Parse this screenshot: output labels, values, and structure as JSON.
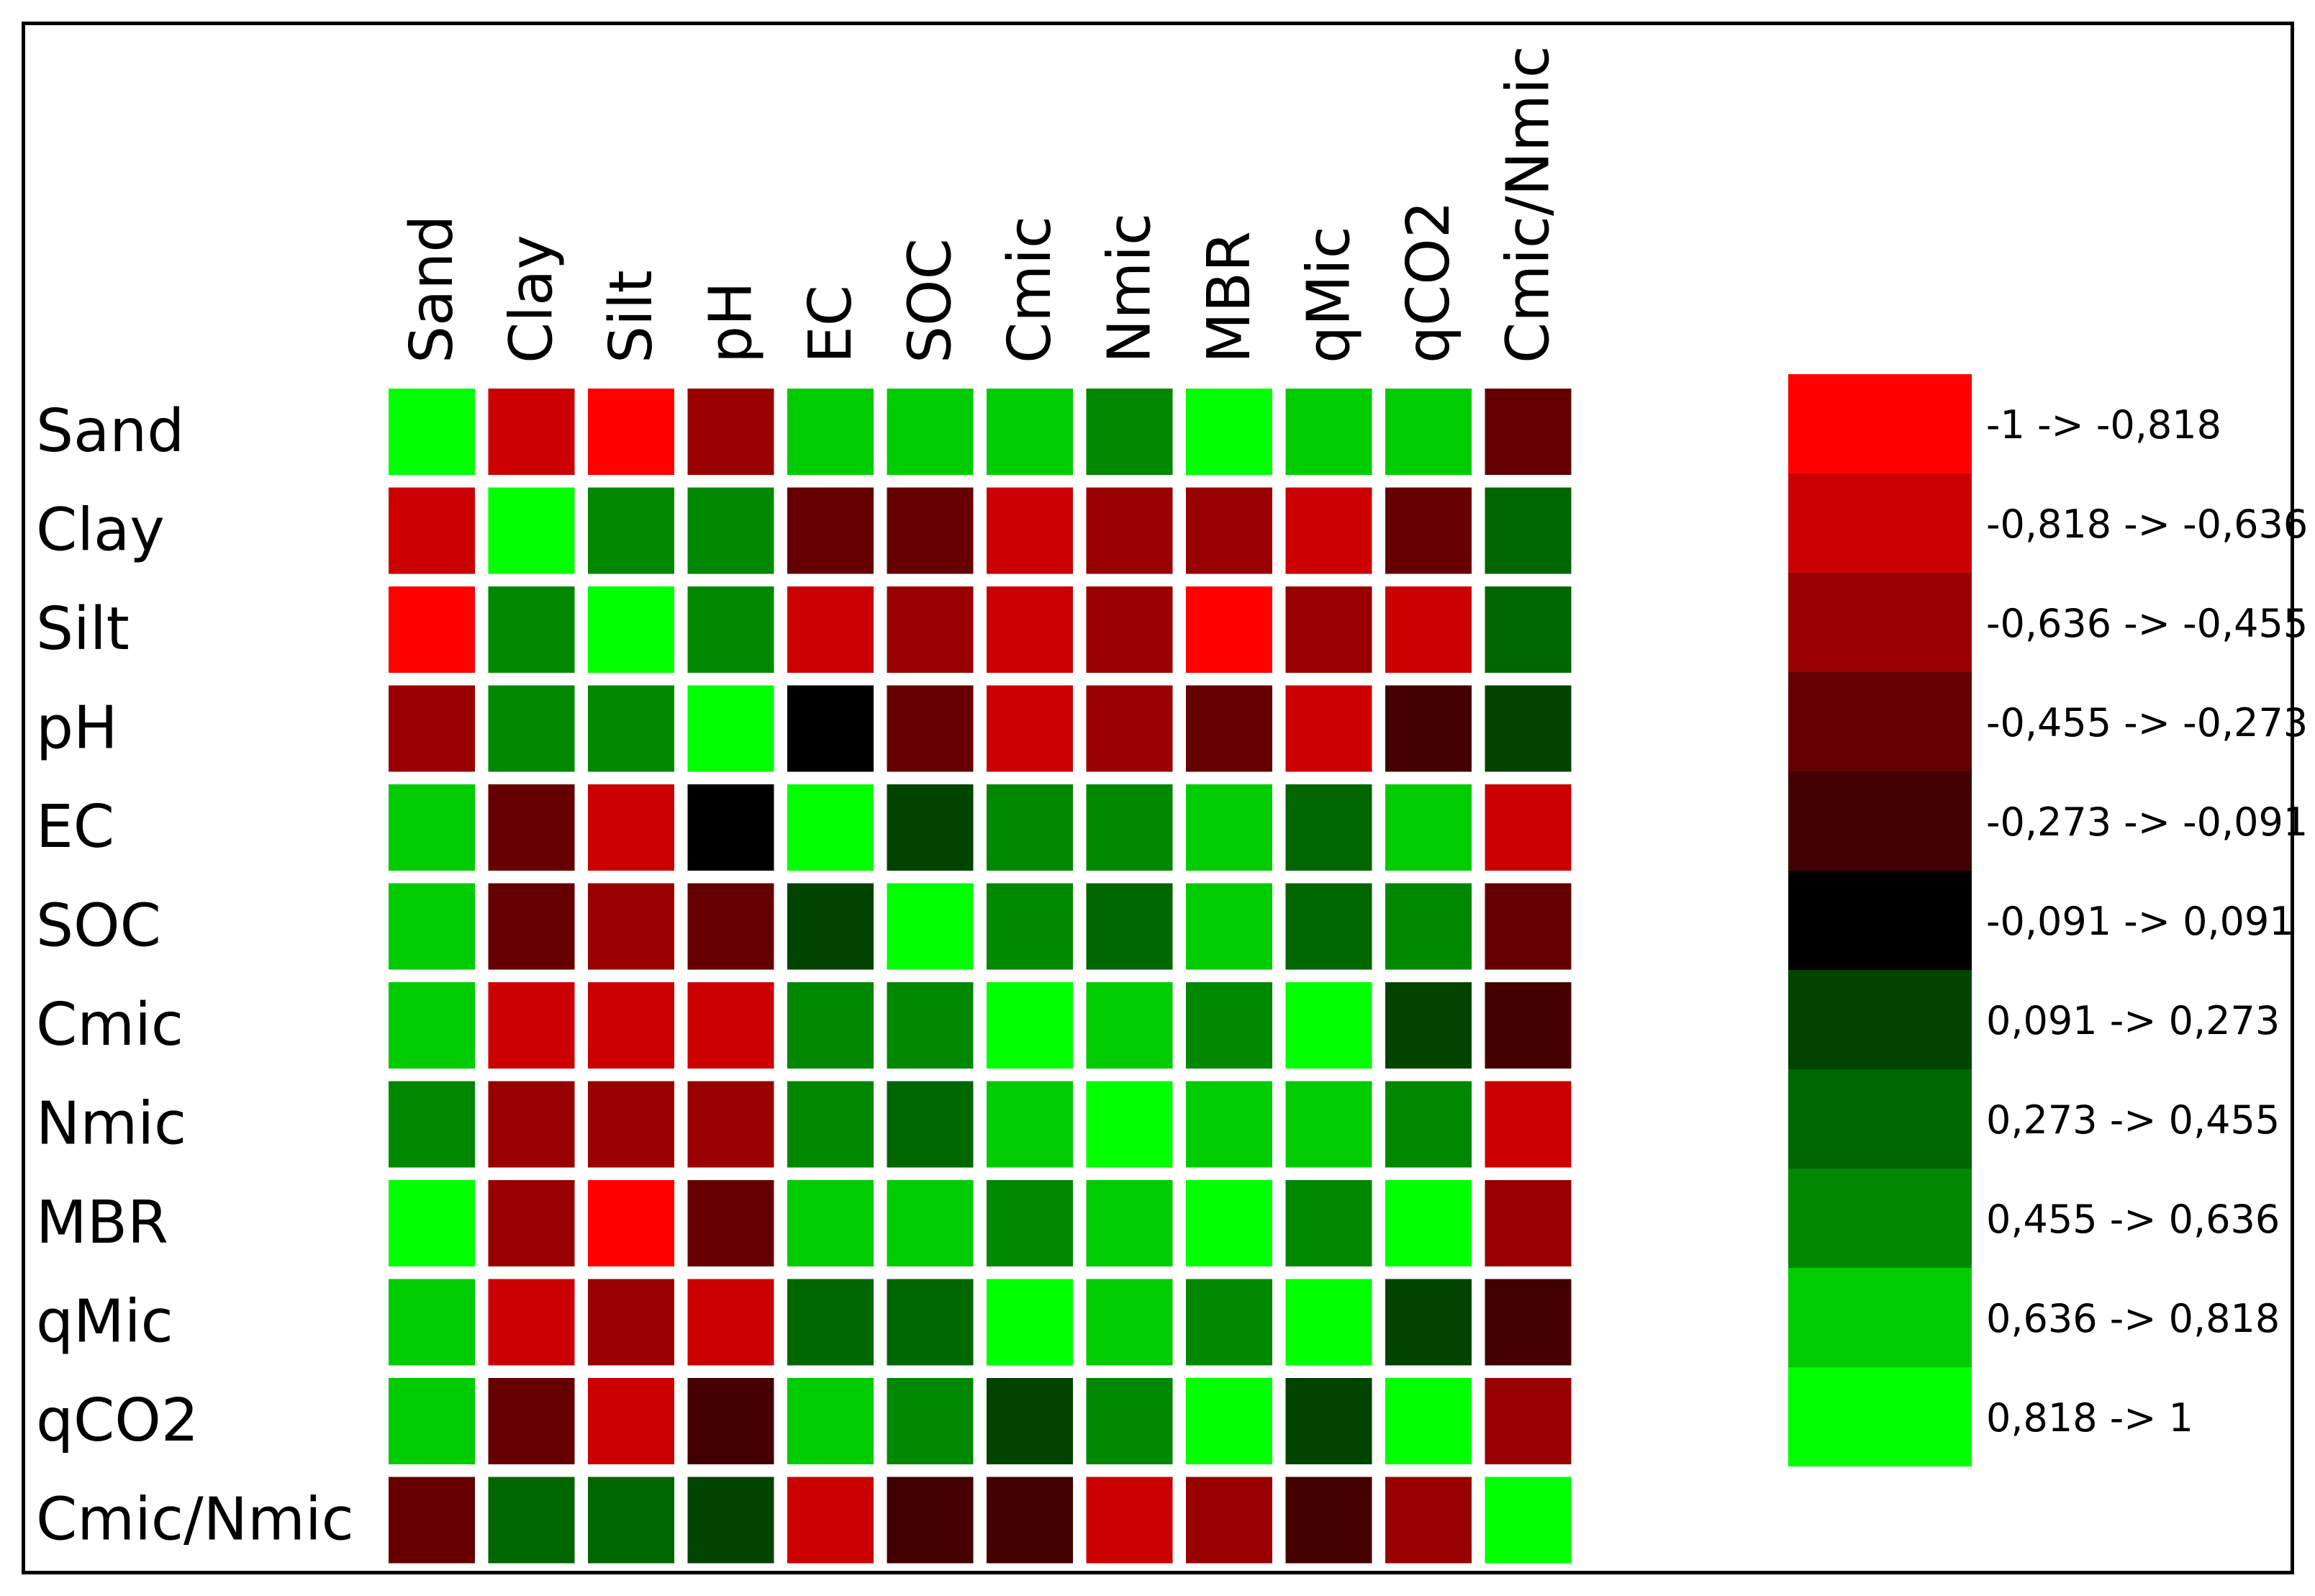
{
  "chart_data": {
    "type": "heatmap",
    "row_labels": [
      "Sand",
      "Clay",
      "Silt",
      "pH",
      "EC",
      "SOC",
      "Cmic",
      "Nmic",
      "MBR",
      "qMic",
      "qCO2",
      "Cmic/Nmic"
    ],
    "col_labels": [
      "Sand",
      "Clay",
      "Silt",
      "pH",
      "EC",
      "SOC",
      "Cmic",
      "Nmic",
      "MBR",
      "qMic",
      "qCO2",
      "Cmic/Nmic"
    ],
    "bins": [
      {
        "label": "-1 -> -0,818",
        "color": "#ff0000"
      },
      {
        "label": "-0,818 -> -0,636",
        "color": "#cc0000"
      },
      {
        "label": "-0,636 -> -0,455",
        "color": "#990000"
      },
      {
        "label": "-0,455 -> -0,273",
        "color": "#660000"
      },
      {
        "label": "-0,273 -> -0,091",
        "color": "#440000"
      },
      {
        "label": "-0,091 -> 0,091",
        "color": "#000000"
      },
      {
        "label": "0,091 -> 0,273",
        "color": "#004400"
      },
      {
        "label": "0,273 -> 0,455",
        "color": "#006600"
      },
      {
        "label": "0,455 -> 0,636",
        "color": "#008800"
      },
      {
        "label": "0,636 -> 0,818",
        "color": "#00cc00"
      },
      {
        "label": "0,818 -> 1",
        "color": "#00ff00"
      }
    ],
    "bin_index_matrix": [
      [
        10,
        1,
        0,
        2,
        9,
        9,
        9,
        8,
        10,
        9,
        9,
        3
      ],
      [
        1,
        10,
        8,
        8,
        3,
        3,
        1,
        2,
        2,
        1,
        3,
        7
      ],
      [
        0,
        8,
        10,
        8,
        1,
        2,
        1,
        2,
        0,
        2,
        1,
        7
      ],
      [
        2,
        8,
        8,
        10,
        5,
        3,
        1,
        2,
        3,
        1,
        4,
        6
      ],
      [
        9,
        3,
        1,
        5,
        10,
        6,
        8,
        8,
        9,
        7,
        9,
        1
      ],
      [
        9,
        3,
        2,
        3,
        6,
        10,
        8,
        7,
        9,
        7,
        8,
        3
      ],
      [
        9,
        1,
        1,
        1,
        8,
        8,
        10,
        9,
        8,
        10,
        6,
        4
      ],
      [
        8,
        2,
        2,
        2,
        8,
        7,
        9,
        10,
        9,
        9,
        8,
        1
      ],
      [
        10,
        2,
        0,
        3,
        9,
        9,
        8,
        9,
        10,
        8,
        10,
        2
      ],
      [
        9,
        1,
        2,
        1,
        7,
        7,
        10,
        9,
        8,
        10,
        6,
        4
      ],
      [
        9,
        3,
        1,
        4,
        9,
        8,
        6,
        8,
        10,
        6,
        10,
        2
      ],
      [
        3,
        7,
        7,
        6,
        1,
        4,
        4,
        1,
        2,
        4,
        2,
        10
      ]
    ],
    "legend_position": "right"
  }
}
